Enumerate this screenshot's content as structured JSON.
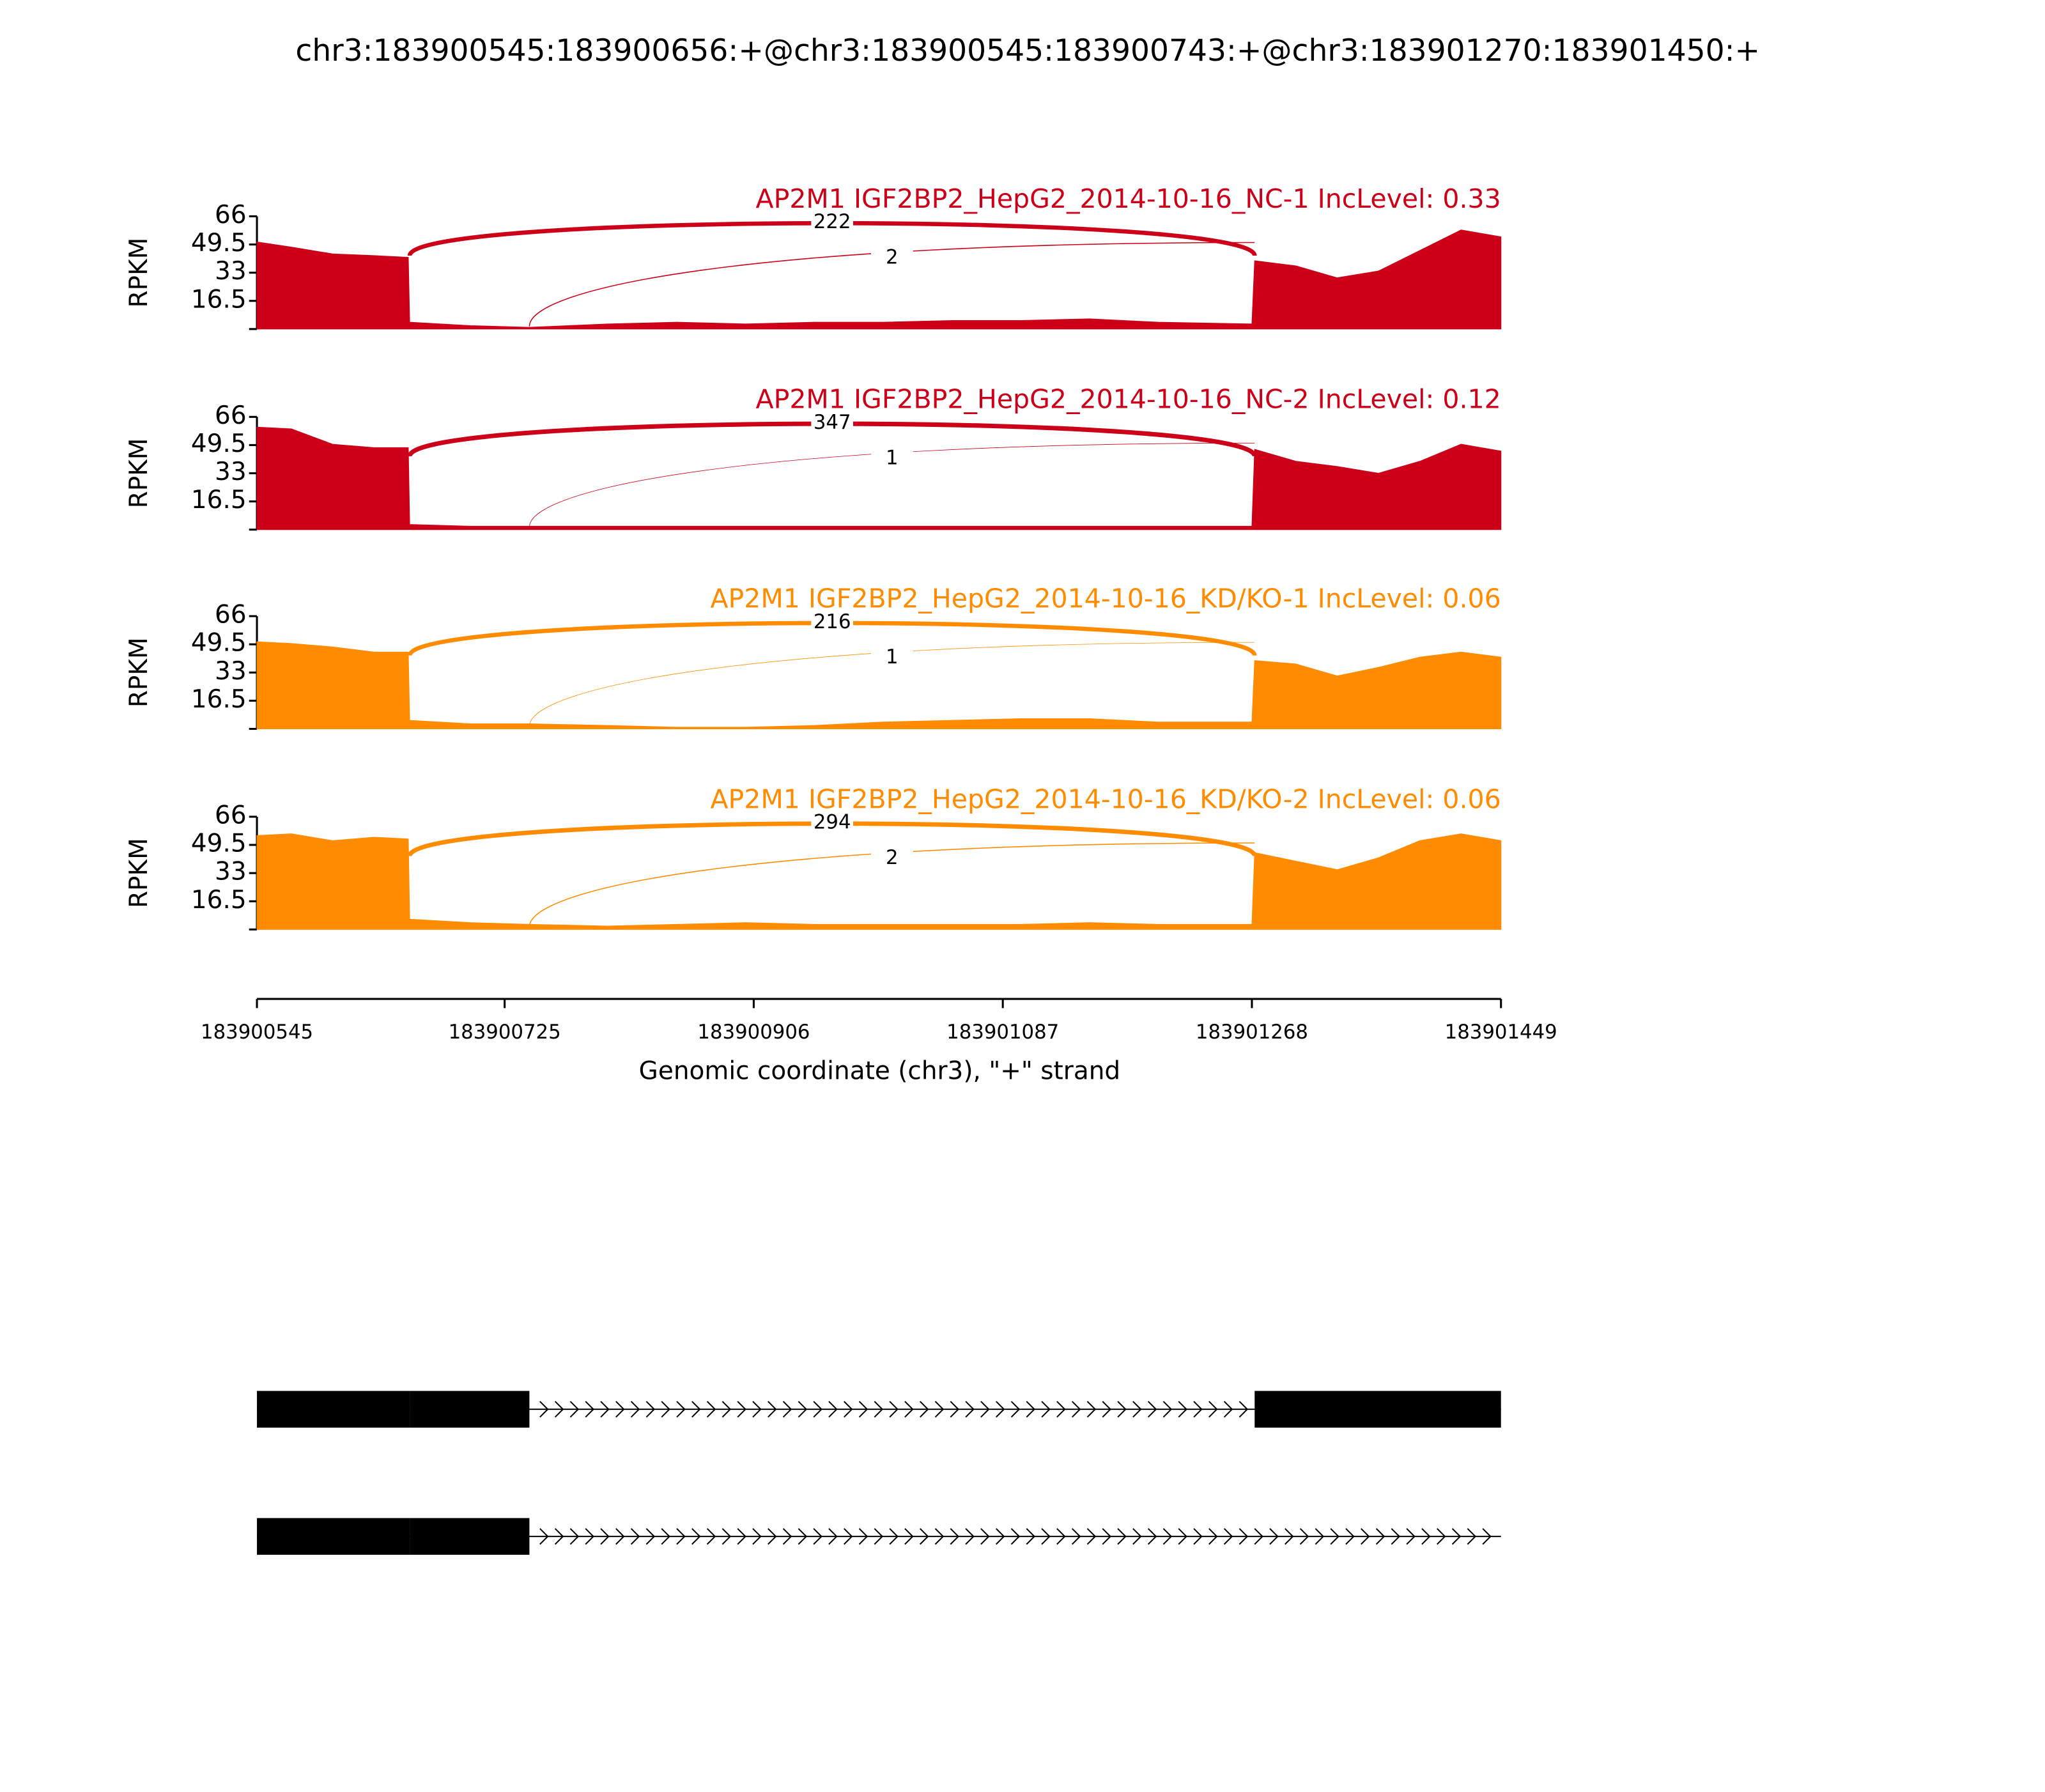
{
  "chart_data": {
    "type": "area",
    "title": "chr3:183900545:183900656:+@chr3:183900545:183900743:+@chr3:183901270:183901450:+",
    "xlabel": "Genomic coordinate (chr3), \"+\" strand",
    "ylabel": "RPKM",
    "xlim": [
      183900545,
      183901449
    ],
    "xticks": [
      183900545,
      183900725,
      183900906,
      183901087,
      183901268,
      183901449
    ],
    "ylim": [
      0,
      66
    ],
    "yticks": [
      16.5,
      33,
      49.5,
      66
    ],
    "x": [
      183900545,
      183900570,
      183900600,
      183900630,
      183900655,
      183900656,
      183900700,
      183900743,
      183900800,
      183900850,
      183900900,
      183900950,
      183901000,
      183901050,
      183901100,
      183901150,
      183901200,
      183901268,
      183901270,
      183901300,
      183901330,
      183901360,
      183901390,
      183901420,
      183901449
    ],
    "panels": [
      {
        "title": "AP2M1 IGF2BP2_HepG2_2014-10-16_NC-1 IncLevel: 0.33",
        "color": "#cc0018",
        "values": [
          51,
          48,
          44,
          43,
          42,
          4,
          2,
          1,
          3,
          4,
          3,
          4,
          4,
          5,
          5,
          6,
          4,
          3,
          40,
          37,
          30,
          34,
          46,
          58,
          54
        ],
        "junctions": [
          {
            "start": 183900656,
            "end": 183901270,
            "count": 222
          },
          {
            "start": 183900743,
            "end": 183901270,
            "count": 2
          }
        ]
      },
      {
        "title": "AP2M1 IGF2BP2_HepG2_2014-10-16_NC-2 IncLevel: 0.12",
        "color": "#cc0018",
        "values": [
          60,
          59,
          50,
          48,
          48,
          3,
          2,
          2,
          2,
          2,
          2,
          2,
          2,
          2,
          2,
          2,
          2,
          2,
          47,
          40,
          37,
          33,
          40,
          50,
          46
        ],
        "junctions": [
          {
            "start": 183900656,
            "end": 183901270,
            "count": 347
          },
          {
            "start": 183900743,
            "end": 183901270,
            "count": 1
          }
        ]
      },
      {
        "title": "AP2M1 IGF2BP2_HepG2_2014-10-16_KD/KO-1 IncLevel: 0.06",
        "color": "#ff8c00",
        "values": [
          51,
          50,
          48,
          45,
          45,
          5,
          3,
          3,
          2,
          1,
          1,
          2,
          4,
          5,
          6,
          6,
          4,
          4,
          40,
          38,
          31,
          36,
          42,
          45,
          42
        ],
        "junctions": [
          {
            "start": 183900656,
            "end": 183901270,
            "count": 216
          },
          {
            "start": 183900743,
            "end": 183901270,
            "count": 1
          }
        ]
      },
      {
        "title": "AP2M1 IGF2BP2_HepG2_2014-10-16_KD/KO-2 IncLevel: 0.06",
        "color": "#ff8c00",
        "values": [
          55,
          56,
          52,
          54,
          53,
          6,
          4,
          3,
          2,
          3,
          4,
          3,
          3,
          3,
          3,
          4,
          3,
          3,
          45,
          40,
          35,
          42,
          52,
          56,
          52
        ],
        "junctions": [
          {
            "start": 183900656,
            "end": 183901270,
            "count": 294
          },
          {
            "start": 183900743,
            "end": 183901270,
            "count": 2
          }
        ]
      }
    ],
    "transcripts": [
      {
        "exons": [
          [
            183900545,
            183900656
          ],
          [
            183900656,
            183900743
          ],
          [
            183901270,
            183901449
          ]
        ]
      },
      {
        "exons": [
          [
            183900545,
            183900656
          ],
          [
            183900656,
            183900743
          ]
        ]
      }
    ]
  }
}
